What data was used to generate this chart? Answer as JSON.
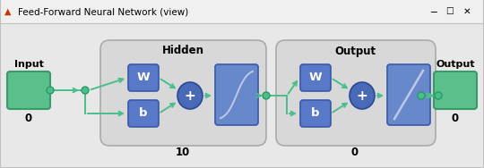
{
  "title": "Feed-Forward Neural Network (view)",
  "titlebar_bg": "#f0f0f0",
  "titlebar_border": "#c0c0c0",
  "content_bg": "#e8e8e8",
  "green_color": "#5abf8a",
  "green_edge": "#3a9a6a",
  "blue_rect_color": "#5a78c8",
  "blue_rect_edge": "#3a58a8",
  "blue_ellipse_color": "#4a6ab8",
  "blue_ellipse_edge": "#2a4a98",
  "blue_act_color": "#6888cc",
  "arrow_color": "#4abf8a",
  "node_color": "#4abf8a",
  "node_edge": "#2a9a6a",
  "layer_bg": "#d8d8d8",
  "layer_edge": "#aaaaaa",
  "text_color": "#000000",
  "white": "#ffffff",
  "hidden_label": "Hidden",
  "output_layer_label": "Output",
  "input_label": "Input",
  "output_box_label": "Output",
  "hidden_num": "10",
  "output_num": "0",
  "input_num": "0",
  "out_num": "0",
  "w_label": "W",
  "b_label": "b",
  "plus_label": "+",
  "figsize": [
    5.4,
    1.88
  ],
  "dpi": 100
}
